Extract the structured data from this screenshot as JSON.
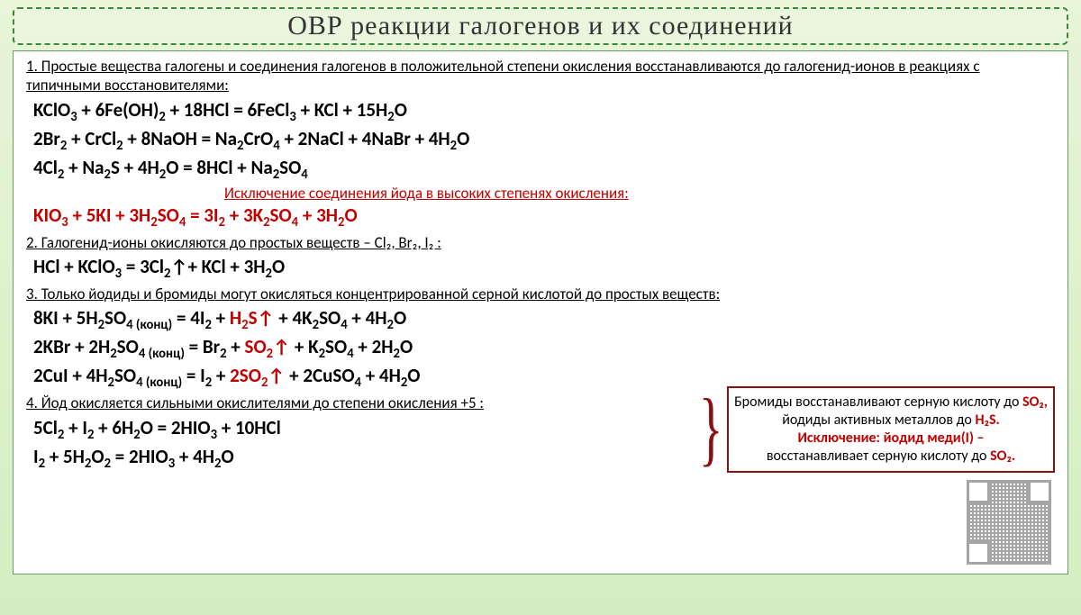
{
  "title": "ОВР реакции  галогенов и их соединений",
  "rule1": "1. Простые вещества галогены и соединения галогенов в положительной степени окисления восстанавливаются до галогенид-ионов в реакциях с типичными восстановителями:",
  "eq1a": "KClO<sub>3</sub> + 6Fe(OH)<sub>2</sub> + 18HCl = 6FeCl<sub>3</sub> + KCl + 15H<sub>2</sub>O",
  "eq1b": "2Br<sub>2</sub> + CrCl<sub>2</sub> + 8NaOH = Na<sub>2</sub>CrO<sub>4</sub> + 2NaCl + 4NaBr + 4H<sub>2</sub>O",
  "eq1c": "4Cl<sub>2</sub> + Na<sub>2</sub>S + 4H<sub>2</sub>O = 8HCl + Na<sub>2</sub>SO<sub>4</sub>",
  "exc_note": "Исключение соединения йода в высоких степенях окисления:",
  "eq1d": "KIO<sub>3</sub> + 5KI + 3H<sub>2</sub>SO<sub>4</sub> = 3I<sub>2</sub> + 3K<sub>2</sub>SO<sub>4</sub> + 3H<sub>2</sub>O",
  "rule2": "2. Галогенид-ионы окисляются до простых веществ – Cl₂, Br₂, I₂ :",
  "eq2": "HCl + KClO<sub>3</sub> = 3Cl<sub>2</sub>↑+ KCl + 3H<sub>2</sub>O",
  "rule3": "3. Только йодиды и бромиды могут окисляться концентрированной серной кислотой до простых веществ:",
  "eq3a_l": "8KI + 5H<sub>2</sub>SO<sub>4 (конц)</sub> = 4I<sub>2</sub> + ",
  "eq3a_r": "H<sub>2</sub>S↑",
  "eq3a_t": " + 4K<sub>2</sub>SO<sub>4</sub> + 4H<sub>2</sub>O",
  "eq3b_l": "2KBr + 2H<sub>2</sub>SO<sub>4 (конц)</sub> = Br<sub>2</sub> + ",
  "eq3b_r": "SO<sub>2</sub>↑",
  "eq3b_t": " + K<sub>2</sub>SO<sub>4</sub> + 2H<sub>2</sub>O",
  "eq3c_l": "2CuI + 4H<sub>2</sub>SO<sub>4 (конц)</sub> = I<sub>2</sub> + ",
  "eq3c_r": "2SO<sub>2</sub>↑",
  "eq3c_t": " + 2CuSO<sub>4</sub> + 4H<sub>2</sub>O",
  "sidenote_p1": "Бромиды восстанавливают серную кислоту до ",
  "sidenote_so2": "SO₂,",
  "sidenote_p2": "  йодиды активных металлов до ",
  "sidenote_h2s": "H₂S.",
  "sidenote_exc": "Исключение: йодид меди(I) –",
  "sidenote_p3": " восстанавливает серную кислоту до ",
  "sidenote_so2b": "SO₂.",
  "rule4": "4. Йод окисляется сильными окислителями до степени окисления +5 :",
  "eq4a": "5Cl<sub>2</sub> + I<sub>2</sub> + 6H<sub>2</sub>O = 2HIO<sub>3</sub> + 10HCl",
  "eq4b": "I<sub>2</sub> + 5H<sub>2</sub>O<sub>2</sub> = 2HIO<sub>3</sub> + 4H<sub>2</sub>O",
  "colors": {
    "accent_red": "#c00000",
    "border_green": "#3a8a3a",
    "note_border": "#8a1010",
    "bg_top": "#e8f5d8",
    "bg_bottom": "#d4edc0"
  }
}
